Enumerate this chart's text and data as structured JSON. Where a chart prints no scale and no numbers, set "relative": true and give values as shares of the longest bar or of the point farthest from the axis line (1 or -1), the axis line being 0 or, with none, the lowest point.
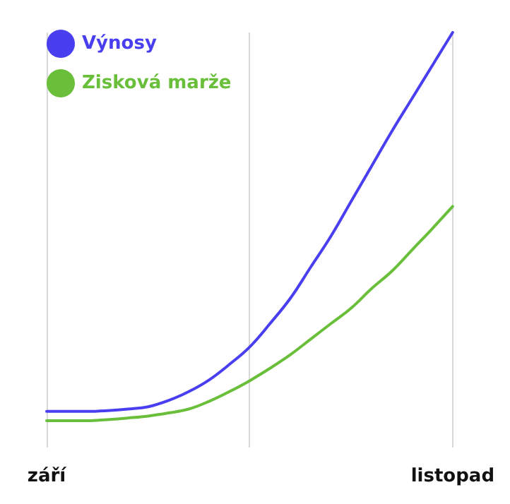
{
  "chart_data": {
    "type": "line",
    "relative": true,
    "legend": "top left",
    "grid": "x",
    "marker": "none",
    "line_style": "solid",
    "categories": [
      "září",
      null,
      null,
      null,
      null,
      null,
      null,
      null,
      null,
      null,
      null,
      null,
      null,
      null,
      null,
      null,
      null,
      null,
      null,
      null,
      "listopad"
    ],
    "series": [
      {
        "name": "Výnosy",
        "color": "#4a3ff0",
        "values": [
          0.024,
          0.024,
          0.024,
          0.026,
          0.03,
          0.036,
          0.052,
          0.075,
          0.105,
          0.145,
          0.19,
          0.25,
          0.315,
          0.395,
          0.475,
          0.565,
          0.655,
          0.745,
          0.83,
          0.915,
          1
        ]
      },
      {
        "name": "Zisková marže",
        "color": "#6abf3a",
        "values": [
          0,
          0,
          0,
          0.003,
          0.007,
          0.012,
          0.02,
          0.03,
          0.05,
          0.075,
          0.103,
          0.135,
          0.17,
          0.21,
          0.25,
          0.29,
          0.34,
          0.385,
          0.44,
          0.495,
          0.552
        ]
      }
    ]
  }
}
